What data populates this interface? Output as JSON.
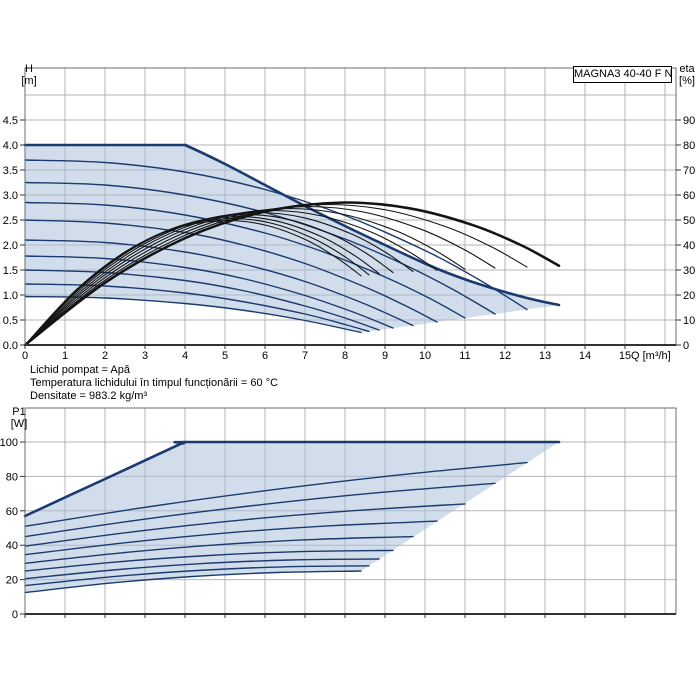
{
  "colors": {
    "curve_blue": "#1b3a70",
    "curve_black": "#141414",
    "shade": "rgba(164,188,216,0.5)",
    "grid": "#b6b6b6",
    "frame": "#6e6e6e",
    "axis": "#333333",
    "text": "#000000"
  },
  "conditions": {
    "line1": "Lichid pompat = Apă",
    "line2": "Temperatura lichidului în timpul funcționării = 60 °C",
    "line3": "Densitate = 983.2 kg/m³"
  },
  "chart_data": [
    {
      "type": "line",
      "title": "MAGNA3 40-40 F N",
      "xlabel": "Q [m³/h]",
      "ylabel_left_lines": [
        "H",
        "[m]"
      ],
      "ylabel_right_lines": [
        "eta",
        "[%]"
      ],
      "xlim": [
        0,
        16.3
      ],
      "grid": true,
      "x_ticks": {
        "values": [
          0,
          1,
          2,
          3,
          4,
          5,
          6,
          7,
          8,
          9,
          10,
          11,
          12,
          13,
          14,
          15
        ],
        "labels": [
          "0",
          "1",
          "2",
          "3",
          "4",
          "5",
          "6",
          "7",
          "8",
          "9",
          "10",
          "11",
          "12",
          "13",
          "14",
          "15"
        ]
      },
      "y_left": {
        "lim": [
          0,
          5.54
        ],
        "tick_values": [
          0,
          0.5,
          1,
          1.5,
          2,
          2.5,
          3,
          3.5,
          4,
          4.5
        ],
        "tick_labels": [
          "0.0",
          "0.5",
          "1.0",
          "1.5",
          "2.0",
          "2.5",
          "3.0",
          "3.5",
          "4.0",
          "4.5"
        ]
      },
      "y_right": {
        "lim": [
          0,
          110.8
        ],
        "tick_values": [
          0,
          10,
          20,
          30,
          40,
          50,
          60,
          70,
          80,
          90
        ],
        "tick_labels": [
          "0",
          "10",
          "20",
          "30",
          "40",
          "50",
          "60",
          "70",
          "80",
          "90"
        ]
      },
      "pump_curves": [
        [
          [
            0,
            4
          ],
          [
            2,
            4
          ],
          [
            3.9,
            4
          ],
          [
            4,
            4
          ],
          [
            5,
            3.62
          ],
          [
            6,
            3.2
          ],
          [
            7,
            2.78
          ],
          [
            8,
            2.38
          ],
          [
            9,
            2.0
          ],
          [
            10,
            1.63
          ],
          [
            10.7,
            1.4
          ],
          [
            11.5,
            1.18
          ],
          [
            12.5,
            0.95
          ],
          [
            13.35,
            0.8
          ]
        ],
        [
          [
            0,
            3.7
          ],
          [
            2,
            3.65
          ],
          [
            4,
            3.46
          ],
          [
            6,
            3.11
          ],
          [
            8,
            2.59
          ],
          [
            10,
            1.89
          ],
          [
            11.3,
            1.33
          ],
          [
            12.55,
            0.71
          ]
        ],
        [
          [
            0,
            3.25
          ],
          [
            2,
            3.2
          ],
          [
            4,
            3.0
          ],
          [
            6,
            2.65
          ],
          [
            8,
            2.12
          ],
          [
            9.5,
            1.6
          ],
          [
            10.7,
            1.11
          ],
          [
            11.75,
            0.62
          ]
        ],
        [
          [
            0,
            2.85
          ],
          [
            2,
            2.8
          ],
          [
            4,
            2.6
          ],
          [
            6,
            2.24
          ],
          [
            7.5,
            1.85
          ],
          [
            9,
            1.36
          ],
          [
            10.1,
            0.94
          ],
          [
            11,
            0.54
          ]
        ],
        [
          [
            0,
            2.5
          ],
          [
            2,
            2.44
          ],
          [
            4,
            2.25
          ],
          [
            5.5,
            1.99
          ],
          [
            7,
            1.63
          ],
          [
            8.5,
            1.16
          ],
          [
            9.5,
            0.79
          ],
          [
            10.3,
            0.46
          ]
        ],
        [
          [
            0,
            2.1
          ],
          [
            2,
            2.05
          ],
          [
            4,
            1.86
          ],
          [
            5.5,
            1.61
          ],
          [
            7,
            1.27
          ],
          [
            8.5,
            0.82
          ],
          [
            9.7,
            0.39
          ]
        ],
        [
          [
            0,
            1.78
          ],
          [
            2,
            1.73
          ],
          [
            4,
            1.55
          ],
          [
            5.5,
            1.32
          ],
          [
            7,
            0.99
          ],
          [
            8.2,
            0.66
          ],
          [
            9.2,
            0.34
          ]
        ],
        [
          [
            0,
            1.5
          ],
          [
            2,
            1.45
          ],
          [
            4,
            1.29
          ],
          [
            5.5,
            1.08
          ],
          [
            7,
            0.78
          ],
          [
            8,
            0.54
          ],
          [
            8.85,
            0.3
          ]
        ],
        [
          [
            0,
            1.22
          ],
          [
            2,
            1.18
          ],
          [
            4,
            1.04
          ],
          [
            5.5,
            0.86
          ],
          [
            7,
            0.62
          ],
          [
            8,
            0.41
          ],
          [
            8.6,
            0.27
          ]
        ],
        [
          [
            0,
            0.97
          ],
          [
            2,
            0.94
          ],
          [
            4,
            0.83
          ],
          [
            5.5,
            0.69
          ],
          [
            7,
            0.49
          ],
          [
            8.4,
            0.25
          ]
        ]
      ],
      "eta_curves": [
        [
          [
            0,
            0
          ],
          [
            2,
            24.9
          ],
          [
            4.01,
            42.8
          ],
          [
            6.01,
            53.4
          ],
          [
            8.01,
            57
          ],
          [
            9.61,
            54.7
          ],
          [
            11.21,
            47.9
          ],
          [
            12.42,
            39.8
          ],
          [
            13.35,
            31.7
          ]
        ],
        [
          [
            0,
            0
          ],
          [
            1.88,
            24.6
          ],
          [
            3.77,
            42.2
          ],
          [
            5.65,
            52.7
          ],
          [
            7.53,
            56.2
          ],
          [
            9.04,
            54
          ],
          [
            10.54,
            47.2
          ],
          [
            11.67,
            39.2
          ],
          [
            12.55,
            31.2
          ]
        ],
        [
          [
            0,
            0
          ],
          [
            1.76,
            24.2
          ],
          [
            3.53,
            41.6
          ],
          [
            5.29,
            51.9
          ],
          [
            7.05,
            55.4
          ],
          [
            8.46,
            53.2
          ],
          [
            9.87,
            46.5
          ],
          [
            10.93,
            38.6
          ],
          [
            11.75,
            30.8
          ]
        ],
        [
          [
            0,
            0
          ],
          [
            1.65,
            23.9
          ],
          [
            3.3,
            41
          ],
          [
            4.95,
            51.2
          ],
          [
            6.6,
            54.6
          ],
          [
            7.92,
            52.4
          ],
          [
            9.24,
            45.9
          ],
          [
            10.23,
            38.1
          ],
          [
            11,
            30.3
          ]
        ],
        [
          [
            0,
            0
          ],
          [
            1.55,
            23.5
          ],
          [
            3.09,
            40.4
          ],
          [
            4.64,
            50.4
          ],
          [
            6.18,
            53.8
          ],
          [
            7.42,
            51.6
          ],
          [
            8.65,
            45.2
          ],
          [
            9.58,
            37.5
          ],
          [
            10.3,
            29.9
          ]
        ],
        [
          [
            0,
            0
          ],
          [
            1.46,
            23.2
          ],
          [
            2.91,
            39.8
          ],
          [
            4.37,
            49.7
          ],
          [
            5.82,
            53
          ],
          [
            6.98,
            50.9
          ],
          [
            8.15,
            44.5
          ],
          [
            9.02,
            37
          ],
          [
            9.7,
            29.4
          ]
        ],
        [
          [
            0,
            0
          ],
          [
            1.38,
            22.8
          ],
          [
            2.76,
            39.2
          ],
          [
            4.14,
            48.9
          ],
          [
            5.52,
            52.2
          ],
          [
            6.62,
            50.1
          ],
          [
            7.73,
            43.8
          ],
          [
            8.56,
            36.4
          ],
          [
            9.2,
            29
          ]
        ],
        [
          [
            0,
            0
          ],
          [
            1.33,
            22.5
          ],
          [
            2.66,
            38.6
          ],
          [
            3.98,
            48.2
          ],
          [
            5.31,
            51.4
          ],
          [
            6.37,
            49.3
          ],
          [
            7.43,
            43.2
          ],
          [
            8.23,
            35.9
          ],
          [
            8.85,
            28.6
          ]
        ],
        [
          [
            0,
            0
          ],
          [
            1.29,
            22.1
          ],
          [
            2.58,
            38
          ],
          [
            3.87,
            47.4
          ],
          [
            5.16,
            50.6
          ],
          [
            6.19,
            48.6
          ],
          [
            7.22,
            42.5
          ],
          [
            8,
            35.3
          ],
          [
            8.6,
            28.1
          ]
        ],
        [
          [
            0,
            0
          ],
          [
            1.26,
            21.8
          ],
          [
            2.52,
            37.4
          ],
          [
            3.78,
            46.7
          ],
          [
            5.04,
            49.8
          ],
          [
            6.05,
            47.8
          ],
          [
            7.06,
            41.8
          ],
          [
            7.81,
            34.7
          ],
          [
            8.4,
            27.7
          ]
        ]
      ]
    },
    {
      "type": "line",
      "ylabel_left_lines": [
        "P1",
        "[W]"
      ],
      "xlim": [
        0,
        16.3
      ],
      "grid": true,
      "x_ticks": {
        "values": [
          0,
          1,
          2,
          3,
          4,
          5,
          6,
          7,
          8,
          9,
          10,
          11,
          12,
          13,
          14,
          15
        ],
        "labels": []
      },
      "y_left": {
        "lim": [
          0,
          119.8
        ],
        "tick_values": [
          0,
          20,
          40,
          60,
          80,
          100
        ],
        "tick_labels": [
          "0",
          "20",
          "40",
          "60",
          "80",
          "100"
        ]
      },
      "power_curves": [
        [
          [
            0,
            57
          ],
          [
            2,
            78.5
          ],
          [
            3.9,
            99
          ],
          [
            4,
            100
          ],
          [
            8,
            100
          ],
          [
            13.35,
            100
          ]
        ],
        [
          [
            0,
            51
          ],
          [
            3.14,
            62.5
          ],
          [
            6.28,
            72.5
          ],
          [
            9.41,
            81
          ],
          [
            12.55,
            88
          ]
        ],
        [
          [
            0,
            45
          ],
          [
            2.94,
            55
          ],
          [
            5.88,
            63.5
          ],
          [
            8.81,
            70.5
          ],
          [
            11.75,
            76
          ]
        ],
        [
          [
            0,
            39.5
          ],
          [
            2.75,
            47.9
          ],
          [
            5.5,
            54.8
          ],
          [
            8.25,
            60.1
          ],
          [
            11,
            64
          ]
        ],
        [
          [
            0,
            34.5
          ],
          [
            2.58,
            41.6
          ],
          [
            5.15,
            47.3
          ],
          [
            7.73,
            51.4
          ],
          [
            10.3,
            54
          ]
        ],
        [
          [
            0,
            29.5
          ],
          [
            2.43,
            35.6
          ],
          [
            4.85,
            40.3
          ],
          [
            7.28,
            43.4
          ],
          [
            9.7,
            45
          ]
        ],
        [
          [
            0,
            25
          ],
          [
            2.3,
            30.3
          ],
          [
            4.6,
            34
          ],
          [
            6.9,
            36.3
          ],
          [
            9.2,
            37
          ]
        ],
        [
          [
            0,
            20.5
          ],
          [
            2.21,
            25.6
          ],
          [
            4.43,
            29.3
          ],
          [
            6.64,
            31.4
          ],
          [
            8.85,
            32
          ]
        ],
        [
          [
            0,
            16.5
          ],
          [
            2.15,
            21.6
          ],
          [
            4.3,
            25.3
          ],
          [
            6.45,
            27.4
          ],
          [
            8.6,
            28
          ]
        ],
        [
          [
            0,
            12.5
          ],
          [
            2.1,
            17.9
          ],
          [
            4.2,
            21.8
          ],
          [
            6.3,
            24.1
          ],
          [
            8.4,
            25
          ]
        ]
      ]
    }
  ]
}
